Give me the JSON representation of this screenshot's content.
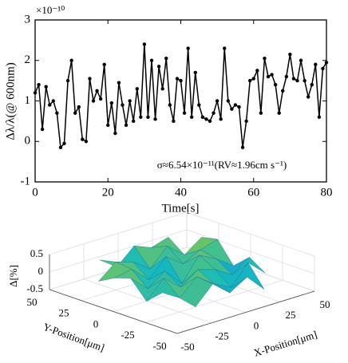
{
  "chart_data": [
    {
      "type": "line",
      "y_exponent": "×10⁻¹⁰",
      "xlabel": "Time[s]",
      "ylabel": "Δλ/λ(@ 600nm)",
      "annotation": "σ≈6.54×10⁻¹¹(RV≈1.96cm s⁻¹)",
      "color": "#000000",
      "x": [
        0,
        1,
        2,
        3,
        4,
        5,
        6,
        7,
        8,
        9,
        10,
        11,
        12,
        13,
        14,
        15,
        16,
        17,
        18,
        19,
        20,
        21,
        22,
        23,
        24,
        25,
        26,
        27,
        28,
        29,
        30,
        31,
        32,
        33,
        34,
        35,
        36,
        37,
        38,
        39,
        40,
        41,
        42,
        43,
        44,
        45,
        46,
        47,
        48,
        49,
        50,
        51,
        52,
        53,
        54,
        55,
        56,
        57,
        58,
        59,
        60,
        61,
        62,
        63,
        64,
        65,
        66,
        67,
        68,
        69,
        70,
        71,
        72,
        73,
        74,
        75,
        76,
        77,
        78,
        79,
        80
      ],
      "values": [
        1.2,
        1.4,
        0.3,
        1.35,
        0.9,
        1.0,
        0.7,
        -0.15,
        -0.05,
        1.5,
        2.0,
        0.7,
        0.85,
        0.05,
        0.0,
        1.55,
        1.0,
        1.25,
        1.05,
        1.9,
        0.4,
        0.95,
        0.2,
        1.45,
        0.9,
        0.4,
        1.0,
        0.5,
        1.3,
        0.6,
        2.4,
        0.6,
        2.0,
        0.55,
        1.85,
        1.3,
        2.05,
        0.9,
        0.5,
        1.55,
        1.5,
        0.7,
        2.3,
        0.6,
        1.7,
        0.9,
        0.6,
        0.55,
        0.5,
        0.7,
        1.0,
        0.55,
        2.3,
        1.0,
        0.8,
        0.9,
        0.85,
        -0.15,
        0.5,
        1.5,
        1.55,
        1.75,
        0.7,
        2.05,
        1.6,
        1.65,
        1.4,
        0.7,
        1.25,
        1.6,
        2.15,
        1.55,
        1.5,
        2.0,
        1.5,
        1.1,
        1.4,
        1.9,
        0.6,
        1.8,
        1.95
      ],
      "xlim": [
        0,
        80
      ],
      "xticks": [
        0,
        20,
        40,
        60,
        80
      ],
      "ylim": [
        -1,
        3
      ],
      "yticks": [
        -1,
        0,
        1,
        2,
        3
      ]
    },
    {
      "type": "surface",
      "xlabel": "X-Position[μm]",
      "ylabel": "Y-Position[μm]",
      "zlabel": "Δ[%]",
      "x": [
        -50,
        -37.5,
        -25,
        -12.5,
        0,
        12.5,
        25,
        37.5,
        50
      ],
      "y": [
        -50,
        -37.5,
        -25,
        -12.5,
        0,
        12.5,
        25,
        37.5,
        50
      ],
      "z": [
        [
          null,
          null,
          null,
          null,
          0.1,
          null,
          null,
          null,
          null
        ],
        [
          null,
          null,
          -0.2,
          0.3,
          -0.1,
          0.2,
          -0.3,
          null,
          null
        ],
        [
          null,
          0.2,
          -0.1,
          0.35,
          0.0,
          -0.25,
          0.3,
          -0.15,
          null
        ],
        [
          null,
          -0.2,
          0.3,
          -0.1,
          0.25,
          0.1,
          -0.2,
          0.15,
          null
        ],
        [
          0.05,
          0.3,
          -0.15,
          0.2,
          -0.3,
          0.35,
          0.1,
          -0.25,
          0.2
        ],
        [
          null,
          0.15,
          0.25,
          -0.2,
          0.3,
          -0.05,
          0.2,
          0.35,
          null
        ],
        [
          null,
          -0.1,
          0.3,
          0.15,
          -0.2,
          0.3,
          -0.1,
          0.25,
          null
        ],
        [
          null,
          null,
          0.2,
          -0.15,
          0.3,
          0.1,
          0.25,
          null,
          null
        ],
        [
          null,
          null,
          null,
          null,
          0.2,
          null,
          null,
          null,
          null
        ]
      ],
      "xlim": [
        -50,
        50
      ],
      "xticks": [
        -50,
        -25,
        0,
        25,
        50
      ],
      "ylim": [
        -50,
        50
      ],
      "yticks": [
        -50,
        -25,
        0,
        25,
        50
      ],
      "zlim": [
        -0.5,
        0.5
      ],
      "zticks": [
        -0.5,
        0,
        0.5
      ]
    }
  ]
}
